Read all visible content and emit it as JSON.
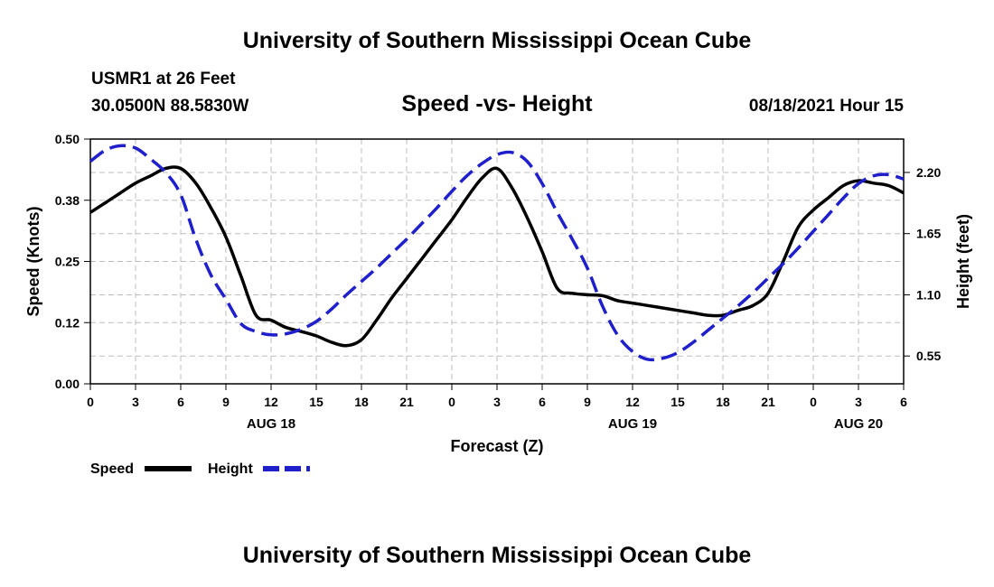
{
  "header": {
    "title": "University of Southern Mississippi Ocean Cube",
    "station": "USMR1 at 26 Feet",
    "location": "30.0500N  88.5830W",
    "date": "08/18/2021 Hour 15"
  },
  "footer": {
    "title": "University of Southern Mississippi Ocean Cube"
  },
  "chart_data": {
    "type": "line",
    "title": "Speed -vs- Height",
    "xlabel": "Forecast (Z)",
    "ylabel": "Speed (Knots)",
    "y2label": "Height (feet)",
    "grid": true,
    "xlim": [
      0,
      54
    ],
    "ylim": [
      0,
      0.5
    ],
    "y2lim": [
      0.3,
      2.5
    ],
    "x_ticks": [
      0,
      3,
      6,
      9,
      12,
      15,
      18,
      21,
      24,
      27,
      30,
      33,
      36,
      39,
      42,
      45,
      48,
      51,
      54
    ],
    "x_tick_labels": [
      "0",
      "3",
      "6",
      "9",
      "12",
      "15",
      "18",
      "21",
      "0",
      "3",
      "6",
      "9",
      "12",
      "15",
      "18",
      "21",
      "0",
      "3",
      "6"
    ],
    "y_ticks": [
      0,
      0.125,
      0.25,
      0.375,
      0.5
    ],
    "y_tick_labels": [
      "0.00",
      "0.12",
      "0.25",
      "0.38",
      "0.50"
    ],
    "y2_ticks": [
      0.55,
      1.1,
      1.65,
      2.2
    ],
    "y2_tick_labels": [
      "0.55",
      "1.10",
      "1.65",
      "2.20"
    ],
    "date_labels": [
      {
        "x": 12,
        "label": "AUG 18"
      },
      {
        "x": 36,
        "label": "AUG 19"
      },
      {
        "x": 51,
        "label": "AUG 20"
      }
    ],
    "legend_position": "bottom-left",
    "series": [
      {
        "name": "Speed",
        "axis": "left",
        "color": "#000000",
        "dash": "solid",
        "x": [
          0,
          1,
          2,
          3,
          4,
          5,
          6,
          7,
          8,
          9,
          10,
          11,
          12,
          13,
          14,
          15,
          16,
          17,
          18,
          19,
          20,
          21,
          22,
          23,
          24,
          25,
          26,
          27,
          28,
          29,
          30,
          31,
          32,
          33,
          34,
          35,
          36,
          37,
          38,
          39,
          40,
          41,
          42,
          43,
          44,
          45,
          46,
          47,
          48,
          49,
          50,
          51,
          52,
          53,
          54
        ],
        "values": [
          0.35,
          0.37,
          0.39,
          0.41,
          0.425,
          0.44,
          0.44,
          0.41,
          0.36,
          0.3,
          0.22,
          0.14,
          0.13,
          0.115,
          0.107,
          0.098,
          0.085,
          0.078,
          0.09,
          0.13,
          0.175,
          0.215,
          0.255,
          0.295,
          0.335,
          0.38,
          0.42,
          0.44,
          0.4,
          0.34,
          0.27,
          0.195,
          0.185,
          0.182,
          0.18,
          0.17,
          0.165,
          0.16,
          0.155,
          0.15,
          0.145,
          0.14,
          0.14,
          0.15,
          0.16,
          0.185,
          0.25,
          0.32,
          0.355,
          0.38,
          0.405,
          0.415,
          0.41,
          0.405,
          0.39
        ]
      },
      {
        "name": "Height",
        "axis": "right",
        "color": "#1f1fcc",
        "dash": "dashed",
        "x": [
          0,
          1,
          2,
          3,
          4,
          5,
          6,
          7,
          8,
          9,
          10,
          11,
          12,
          13,
          14,
          15,
          16,
          17,
          18,
          19,
          20,
          21,
          22,
          23,
          24,
          25,
          26,
          27,
          28,
          29,
          30,
          31,
          32,
          33,
          34,
          35,
          36,
          37,
          38,
          39,
          40,
          41,
          42,
          43,
          44,
          45,
          46,
          47,
          48,
          49,
          50,
          51,
          52,
          53,
          54
        ],
        "values": [
          2.3,
          2.4,
          2.44,
          2.42,
          2.32,
          2.2,
          2.0,
          1.6,
          1.28,
          1.06,
          0.84,
          0.77,
          0.74,
          0.75,
          0.79,
          0.86,
          0.97,
          1.1,
          1.22,
          1.34,
          1.47,
          1.6,
          1.74,
          1.88,
          2.03,
          2.17,
          2.28,
          2.36,
          2.38,
          2.3,
          2.1,
          1.84,
          1.6,
          1.34,
          1.0,
          0.74,
          0.59,
          0.52,
          0.53,
          0.58,
          0.67,
          0.78,
          0.89,
          1.0,
          1.12,
          1.25,
          1.38,
          1.52,
          1.67,
          1.82,
          1.97,
          2.1,
          2.17,
          2.18,
          2.14
        ]
      }
    ]
  }
}
